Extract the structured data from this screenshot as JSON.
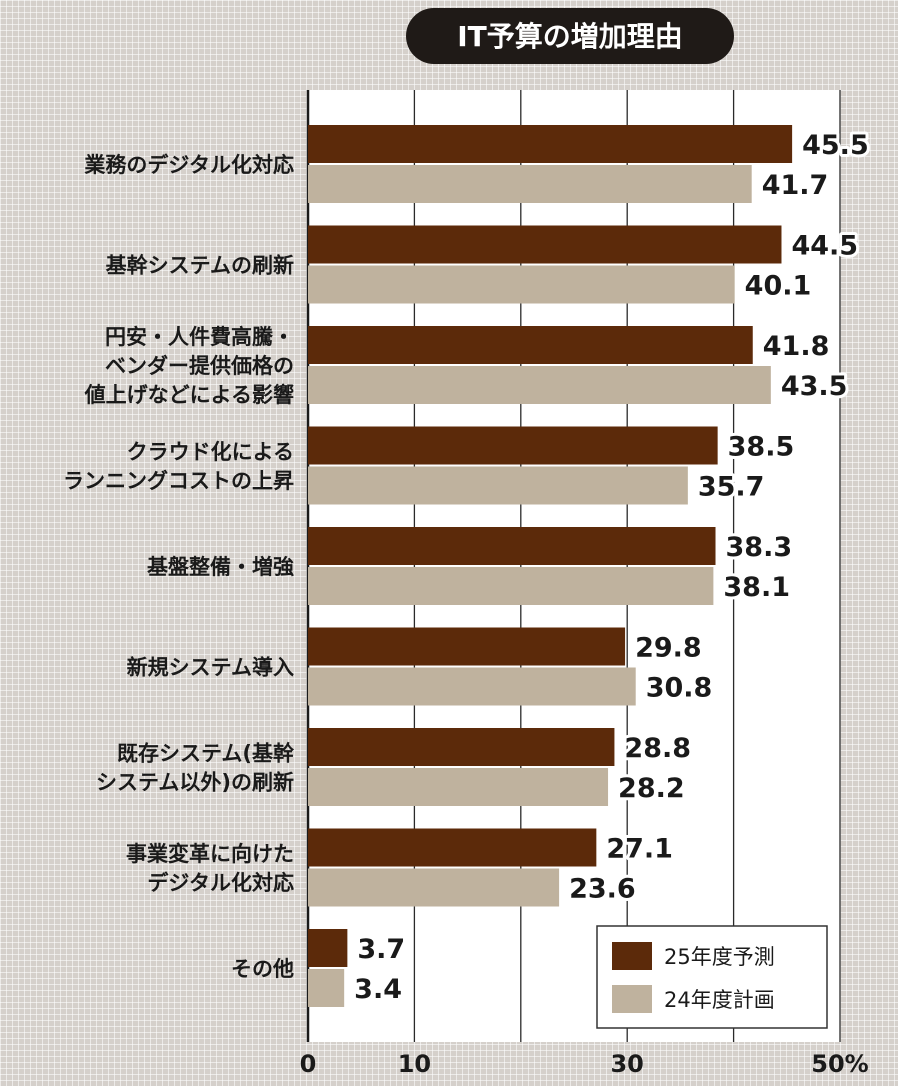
{
  "chart_data": {
    "type": "bar",
    "orientation": "horizontal",
    "title": "IT予算の増加理由",
    "categories": [
      [
        "業務のデジタル化対応"
      ],
      [
        "基幹システムの刷新"
      ],
      [
        "円安・人件費高騰・",
        "ベンダー提供価格の",
        "値上げなどによる影響"
      ],
      [
        "クラウド化による",
        "ランニングコストの上昇"
      ],
      [
        "基盤整備・増強"
      ],
      [
        "新規システム導入"
      ],
      [
        "既存システム(基幹",
        "システム以外)の刷新"
      ],
      [
        "事業変革に向けた",
        "デジタル化対応"
      ],
      [
        "その他"
      ]
    ],
    "series": [
      {
        "name": "25年度予測",
        "color": "#5c2a0a",
        "values": [
          45.5,
          44.5,
          41.8,
          38.5,
          38.3,
          29.8,
          28.8,
          27.1,
          3.7
        ]
      },
      {
        "name": "24年度計画",
        "color": "#bfb29e",
        "values": [
          41.7,
          40.1,
          43.5,
          35.7,
          38.1,
          30.8,
          28.2,
          23.6,
          3.4
        ]
      }
    ],
    "value_labels": [
      [
        "45.5",
        "44.5",
        "41.8",
        "38.5",
        "38.3",
        "29.8",
        "28.8",
        "27.1",
        "3.7"
      ],
      [
        "41.7",
        "40.1",
        "43.5",
        "35.7",
        "38.1",
        "30.8",
        "28.2",
        "23.6",
        "3.4"
      ]
    ],
    "x_ticks": [
      {
        "value": 0,
        "label": "0"
      },
      {
        "value": 10,
        "label": "10"
      },
      {
        "value": 30,
        "label": "30"
      },
      {
        "value": 50,
        "label": "50%"
      }
    ],
    "xlim": [
      0,
      50
    ],
    "grid": true,
    "legend_position": "bottom-right"
  }
}
